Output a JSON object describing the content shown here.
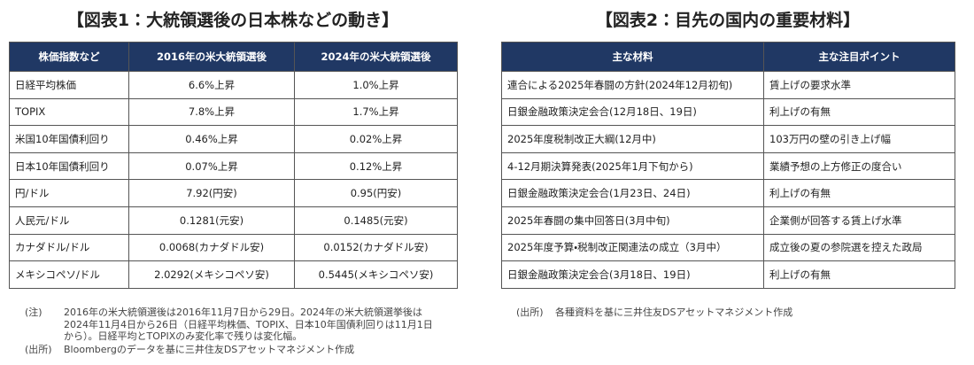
{
  "left": {
    "title": "【図表1：大統領選後の日本株などの動き】",
    "headers": [
      "株価指数など",
      "2016年の米大統領選後",
      "2024年の米大統領選後"
    ],
    "rows": [
      [
        "日経平均株価",
        "6.6%上昇",
        "1.0%上昇"
      ],
      [
        "TOPIX",
        "7.8%上昇",
        "1.7%上昇"
      ],
      [
        "米国10年国債利回り",
        "0.46%上昇",
        "0.02%上昇"
      ],
      [
        "日本10年国債利回り",
        "0.07%上昇",
        "0.12%上昇"
      ],
      [
        "円/ドル",
        "7.92(円安)",
        "0.95(円安)"
      ],
      [
        "人民元/ドル",
        "0.1281(元安)",
        "0.1485(元安)"
      ],
      [
        "カナダドル/ドル",
        "0.0068(カナダドル安)",
        "0.0152(カナダドル安)"
      ],
      [
        "メキシコペソ/ドル",
        "2.0292(メキシコペソ安)",
        "0.5445(メキシコペソ安)"
      ]
    ],
    "note": {
      "label": "(注)",
      "lines": [
        "2016年の米大統領選後は2016年11月7日から29日。2024年の米大統領選挙後は",
        "2024年11月4日から26日（日経平均株価、TOPIX、日本10年国債利回りは11月1日",
        "から）。日経平均とTOPIXのみ変化率で残りは変化幅。"
      ]
    },
    "source": {
      "label": "(出所)",
      "text": "Bloombergのデータを基に三井住友DSアセットマネジメント作成"
    }
  },
  "right": {
    "title": "【図表2：目先の国内の重要材料】",
    "headers": [
      "主な材料",
      "主な注目ポイント"
    ],
    "rows": [
      [
        "連合による2025年春闘の方針(2024年12月初旬)",
        "賃上げの要求水準"
      ],
      [
        "日銀金融政策決定会合(12月18日、19日)",
        "利上げの有無"
      ],
      [
        "2025年度税制改正大綱(12月中)",
        "103万円の壁の引き上げ幅"
      ],
      [
        "4-12月期決算発表(2025年1月下旬から)",
        "業績予想の上方修正の度合い"
      ],
      [
        "日銀金融政策決定会合(1月23日、24日)",
        "利上げの有無"
      ],
      [
        "2025年春闘の集中回答日(3月中旬)",
        "企業側が回答する賃上げ水準"
      ],
      [
        "2025年度予算・税制改正関連法の成立（3月中）",
        "成立後の夏の参院選を控えた政局"
      ],
      [
        "日銀金融政策決定会合(3月18日、19日)",
        "利上げの有無"
      ]
    ],
    "source": {
      "label": "(出所)",
      "text": "各種資料を基に三井住友DSアセットマネジメント作成"
    }
  }
}
